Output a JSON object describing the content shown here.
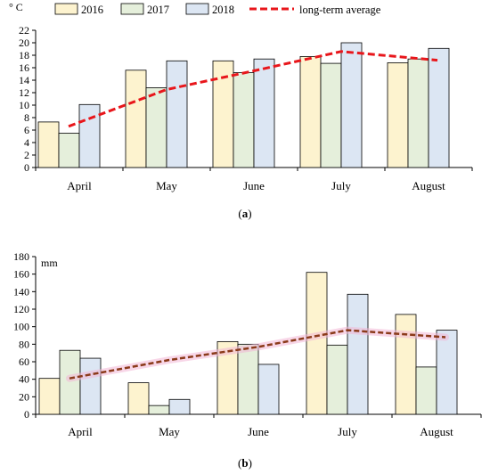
{
  "chart_data": [
    {
      "type": "bar",
      "panel_label": "a",
      "unit": "° C",
      "categories": [
        "April",
        "May",
        "June",
        "July",
        "August"
      ],
      "ylim": [
        0,
        22
      ],
      "yticks": [
        0,
        2,
        4,
        6,
        8,
        10,
        12,
        14,
        16,
        18,
        20,
        22
      ],
      "legend_placement": "top",
      "series": [
        {
          "name": "2016",
          "type": "bar",
          "color": "#fdf3cf",
          "values": [
            7.3,
            15.6,
            17.1,
            17.8,
            16.8
          ]
        },
        {
          "name": "2017",
          "type": "bar",
          "color": "#e5efdb",
          "values": [
            5.5,
            12.8,
            15.2,
            16.7,
            17.4
          ]
        },
        {
          "name": "2018",
          "type": "bar",
          "color": "#dce6f3",
          "values": [
            10.1,
            17.1,
            17.4,
            20.0,
            19.1
          ]
        },
        {
          "name": "long-term average",
          "type": "line",
          "style": "dashed",
          "color": "#e8161b",
          "values": [
            6.6,
            12.5,
            15.5,
            18.6,
            17.2
          ]
        }
      ]
    },
    {
      "type": "bar",
      "panel_label": "b",
      "unit": "mm",
      "categories": [
        "April",
        "May",
        "June",
        "July",
        "August"
      ],
      "ylim": [
        0,
        180
      ],
      "yticks": [
        0,
        20,
        40,
        60,
        80,
        100,
        120,
        140,
        160,
        180
      ],
      "series": [
        {
          "name": "2016",
          "type": "bar",
          "color": "#fdf3cf",
          "values": [
            41,
            36,
            83,
            162,
            114
          ]
        },
        {
          "name": "2017",
          "type": "bar",
          "color": "#e5efdb",
          "values": [
            73,
            10,
            80,
            79,
            54
          ]
        },
        {
          "name": "2018",
          "type": "bar",
          "color": "#dce6f3",
          "values": [
            64,
            17,
            57,
            137,
            96
          ]
        },
        {
          "name": "long-term average",
          "type": "line",
          "style": "dashed",
          "color": "#8b3a1a",
          "glow": "#f3b6d6",
          "values": [
            41,
            62,
            77,
            96,
            88
          ]
        }
      ]
    }
  ]
}
